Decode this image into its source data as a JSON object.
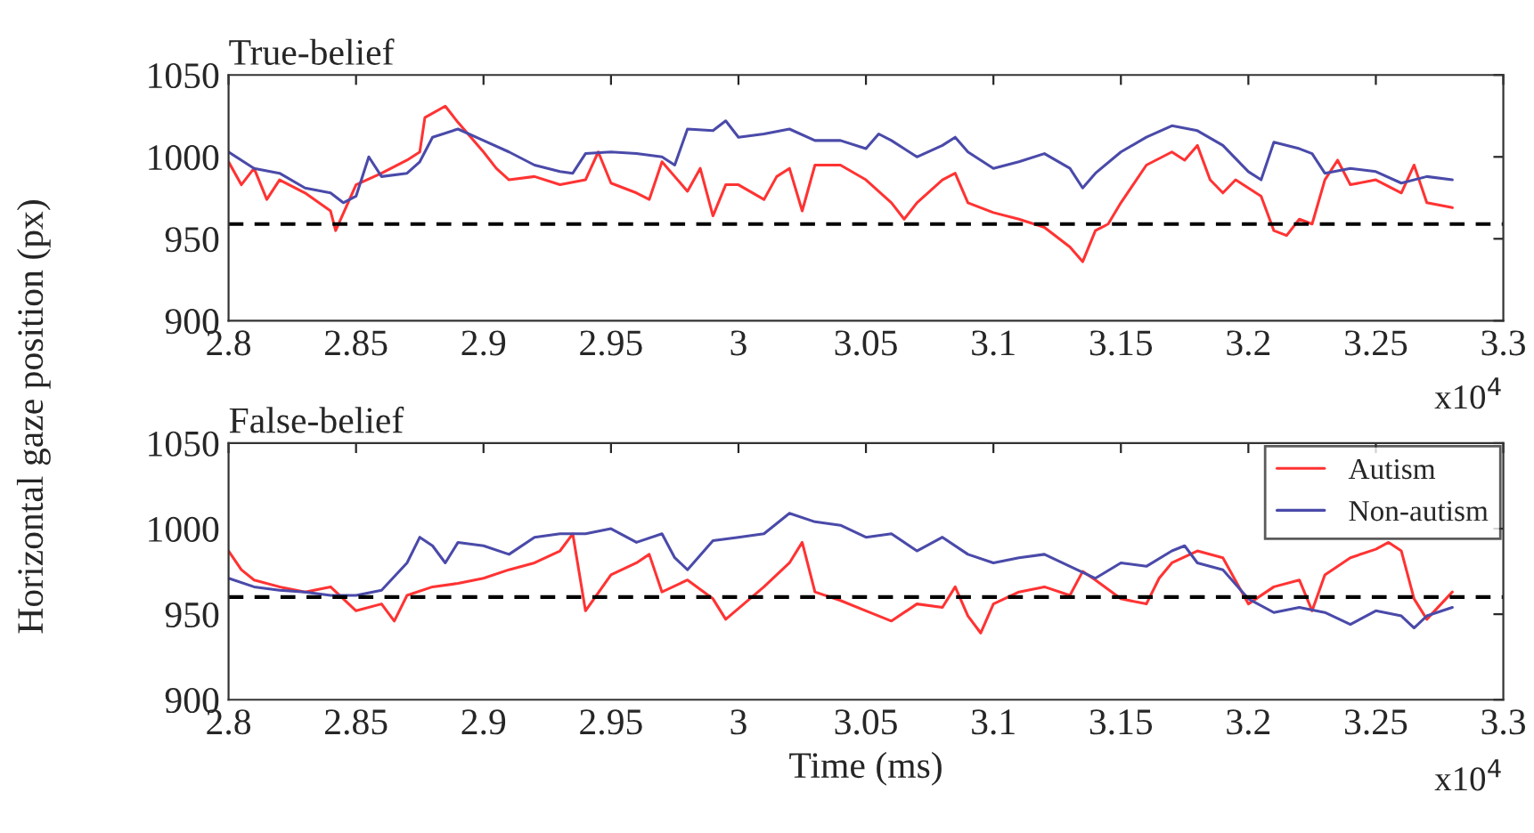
{
  "chart_data": [
    {
      "type": "line",
      "title": "True-belief",
      "ylabel": "Horizontal gaze position (px)",
      "annotations": [
        "x10$^{4}$"
      ],
      "xlim": [
        2.8,
        3.3
      ],
      "xticks": [
        2.8,
        2.85,
        2.9,
        2.95,
        3,
        3.05,
        3.1,
        3.15,
        3.2,
        3.25,
        3.3
      ],
      "ylim": [
        900,
        1050
      ],
      "yticks": [
        900,
        950,
        1000,
        1050
      ],
      "grid": false,
      "legend": false,
      "ref_lines": [
        {
          "axis": "y",
          "value": 959,
          "color": "#000000",
          "line_style": "dashed"
        }
      ],
      "series": [
        {
          "color": "#ff3333",
          "x": [
            2.8,
            2.805,
            2.81,
            2.815,
            2.82,
            2.83,
            2.84,
            2.842,
            2.85,
            2.86,
            2.87,
            2.875,
            2.877,
            2.885,
            2.89,
            2.9,
            2.905,
            2.91,
            2.92,
            2.93,
            2.94,
            2.945,
            2.95,
            2.96,
            2.965,
            2.97,
            2.98,
            2.985,
            2.99,
            2.995,
            3.0,
            3.01,
            3.015,
            3.02,
            3.025,
            3.03,
            3.04,
            3.05,
            3.06,
            3.065,
            3.07,
            3.08,
            3.085,
            3.09,
            3.1,
            3.11,
            3.12,
            3.13,
            3.135,
            3.14,
            3.145,
            3.15,
            3.16,
            3.17,
            3.175,
            3.18,
            3.185,
            3.19,
            3.195,
            3.205,
            3.21,
            3.215,
            3.22,
            3.225,
            3.23,
            3.235,
            3.24,
            3.25,
            3.26,
            3.265,
            3.27,
            3.28
          ],
          "values": [
            997,
            983,
            993,
            974,
            986,
            978,
            967,
            955,
            983,
            990,
            998,
            1003,
            1024,
            1031,
            1021,
            1003,
            993,
            986,
            988,
            983,
            986,
            1003,
            984,
            978,
            974,
            997,
            979,
            993,
            964,
            983,
            983,
            974,
            988,
            993,
            967,
            995,
            995,
            986,
            972,
            962,
            972,
            986,
            990,
            972,
            966,
            962,
            957,
            945,
            936,
            955,
            959,
            972,
            995,
            1003,
            998,
            1007,
            986,
            978,
            986,
            976,
            955,
            952,
            962,
            959,
            986,
            998,
            983,
            986,
            978,
            995,
            972,
            969
          ]
        },
        {
          "color": "#4a4aaa",
          "x": [
            2.8,
            2.81,
            2.82,
            2.83,
            2.84,
            2.845,
            2.85,
            2.855,
            2.86,
            2.87,
            2.875,
            2.88,
            2.89,
            2.9,
            2.91,
            2.92,
            2.93,
            2.935,
            2.94,
            2.95,
            2.96,
            2.97,
            2.975,
            2.98,
            2.99,
            2.995,
            3.0,
            3.01,
            3.02,
            3.03,
            3.04,
            3.05,
            3.055,
            3.06,
            3.07,
            3.08,
            3.085,
            3.09,
            3.1,
            3.11,
            3.12,
            3.13,
            3.135,
            3.14,
            3.15,
            3.16,
            3.17,
            3.18,
            3.19,
            3.2,
            3.205,
            3.21,
            3.22,
            3.225,
            3.23,
            3.24,
            3.25,
            3.26,
            3.27,
            3.28
          ],
          "values": [
            1003,
            993,
            990,
            981,
            978,
            972,
            976,
            1000,
            988,
            990,
            997,
            1012,
            1017,
            1010,
            1003,
            995,
            991,
            990,
            1002,
            1003,
            1002,
            1000,
            995,
            1017,
            1016,
            1022,
            1012,
            1014,
            1017,
            1010,
            1010,
            1005,
            1014,
            1010,
            1000,
            1007,
            1012,
            1003,
            993,
            997,
            1002,
            993,
            981,
            990,
            1003,
            1012,
            1019,
            1016,
            1007,
            991,
            986,
            1009,
            1005,
            1002,
            990,
            993,
            991,
            984,
            988,
            986
          ]
        }
      ]
    },
    {
      "type": "line",
      "title": "False-belief",
      "xlabel": "Time (ms)",
      "annotations": [
        "x10$^{4}$"
      ],
      "xlim": [
        2.8,
        3.3
      ],
      "xticks": [
        2.8,
        2.85,
        2.9,
        2.95,
        3,
        3.05,
        3.1,
        3.15,
        3.2,
        3.25,
        3.3
      ],
      "ylim": [
        900,
        1050
      ],
      "yticks": [
        900,
        950,
        1000,
        1050
      ],
      "grid": false,
      "legend": "top right",
      "ref_lines": [
        {
          "axis": "y",
          "value": 960,
          "color": "#000000",
          "line_style": "dashed"
        }
      ],
      "series": [
        {
          "name": "Autism",
          "color": "#ff3333",
          "x": [
            2.8,
            2.805,
            2.81,
            2.82,
            2.83,
            2.84,
            2.85,
            2.86,
            2.865,
            2.87,
            2.88,
            2.89,
            2.9,
            2.91,
            2.92,
            2.93,
            2.935,
            2.94,
            2.95,
            2.96,
            2.965,
            2.97,
            2.98,
            2.99,
            2.995,
            3.01,
            3.02,
            3.025,
            3.03,
            3.04,
            3.05,
            3.06,
            3.07,
            3.08,
            3.085,
            3.09,
            3.095,
            3.1,
            3.11,
            3.12,
            3.13,
            3.135,
            3.14,
            3.15,
            3.16,
            3.165,
            3.17,
            3.18,
            3.19,
            3.2,
            3.21,
            3.22,
            3.225,
            3.23,
            3.24,
            3.25,
            3.255,
            3.26,
            3.265,
            3.27,
            3.28
          ],
          "values": [
            987,
            976,
            970,
            966,
            963,
            966,
            952,
            956,
            946,
            961,
            966,
            968,
            971,
            976,
            980,
            987,
            997,
            952,
            973,
            980,
            985,
            963,
            970,
            959,
            947,
            966,
            980,
            992,
            963,
            958,
            952,
            946,
            956,
            954,
            966,
            949,
            939,
            956,
            963,
            966,
            961,
            975,
            970,
            959,
            956,
            971,
            980,
            987,
            983,
            956,
            966,
            970,
            952,
            973,
            983,
            988,
            992,
            987,
            959,
            947,
            963
          ]
        },
        {
          "name": "Non-autism",
          "color": "#4a4aaa",
          "x": [
            2.8,
            2.81,
            2.82,
            2.83,
            2.84,
            2.85,
            2.86,
            2.87,
            2.875,
            2.88,
            2.885,
            2.89,
            2.9,
            2.91,
            2.92,
            2.93,
            2.94,
            2.95,
            2.96,
            2.97,
            2.975,
            2.98,
            2.99,
            3.0,
            3.01,
            3.02,
            3.03,
            3.04,
            3.05,
            3.06,
            3.07,
            3.08,
            3.09,
            3.1,
            3.11,
            3.12,
            3.13,
            3.14,
            3.15,
            3.16,
            3.17,
            3.175,
            3.18,
            3.19,
            3.2,
            3.21,
            3.22,
            3.23,
            3.24,
            3.25,
            3.26,
            3.265,
            3.27,
            3.28
          ],
          "values": [
            971,
            966,
            964,
            963,
            961,
            961,
            964,
            980,
            995,
            990,
            980,
            992,
            990,
            985,
            995,
            997,
            997,
            1000,
            992,
            997,
            983,
            976,
            993,
            995,
            997,
            1009,
            1004,
            1002,
            995,
            997,
            987,
            995,
            985,
            980,
            983,
            985,
            978,
            971,
            980,
            978,
            987,
            990,
            980,
            976,
            959,
            951,
            954,
            951,
            944,
            952,
            949,
            942,
            949,
            954
          ]
        }
      ]
    }
  ]
}
